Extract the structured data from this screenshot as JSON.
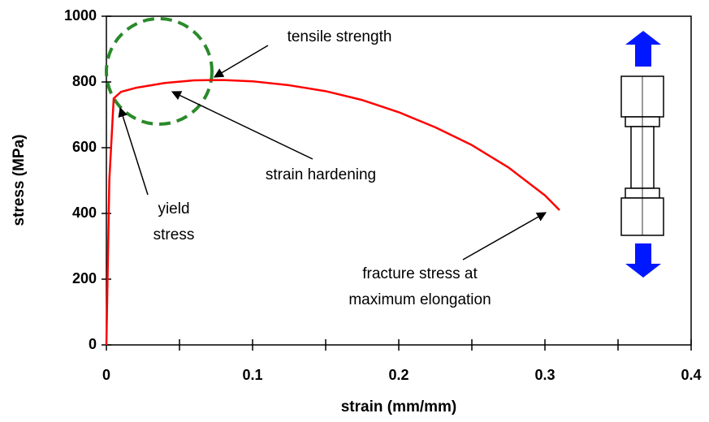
{
  "chart_data": {
    "type": "line",
    "x_label": "strain (mm/mm)",
    "y_label": "stress (MPa)",
    "xlim": [
      0,
      0.4
    ],
    "xticks": [
      0,
      0.1,
      0.2,
      0.3,
      0.4
    ],
    "ylim": [
      0,
      1000
    ],
    "yticks": [
      0,
      200,
      400,
      600,
      800,
      1000
    ],
    "series": [
      {
        "color": "#ff0000",
        "x": [
          0,
          0.002,
          0.005,
          0.01,
          0.02,
          0.04,
          0.06,
          0.08,
          0.1,
          0.125,
          0.15,
          0.175,
          0.2,
          0.225,
          0.25,
          0.275,
          0.3,
          0.31
        ],
        "values": [
          0,
          500,
          750,
          770,
          782,
          797,
          805,
          806,
          802,
          790,
          772,
          745,
          708,
          662,
          608,
          540,
          455,
          410
        ]
      }
    ],
    "annotations": [
      {
        "lines": [
          "tensile strength"
        ]
      },
      {
        "lines": [
          "strain hardening"
        ]
      },
      {
        "lines": [
          "yield",
          "stress"
        ]
      },
      {
        "lines": [
          "fracture stress at",
          "maximum elongation"
        ]
      }
    ]
  }
}
